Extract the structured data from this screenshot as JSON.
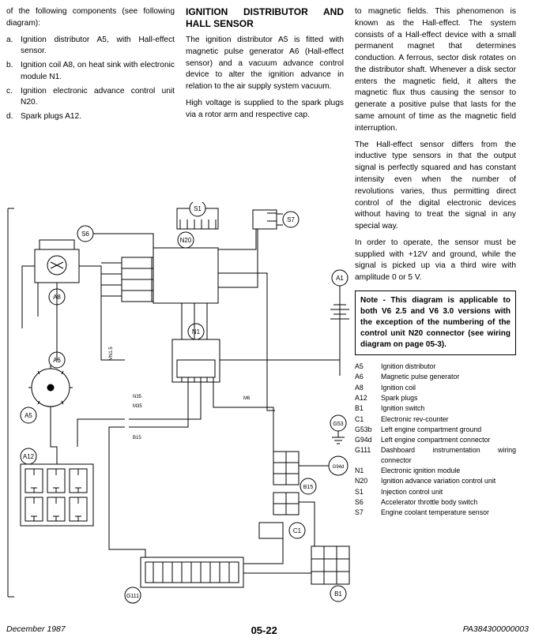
{
  "col_left": {
    "intro": "of the following components (see following diagram):",
    "items": [
      {
        "marker": "a.",
        "text": "Ignition distributor A5, with Hall-effect sensor."
      },
      {
        "marker": "b.",
        "text": "Ignition coil A8, on heat sink with electronic module N1."
      },
      {
        "marker": "c.",
        "text": "Ignition electronic advance control unit N20."
      },
      {
        "marker": "d.",
        "text": "Spark plugs A12."
      }
    ]
  },
  "col_mid": {
    "heading": "IGNITION DISTRIBUTOR AND HALL SENSOR",
    "para1": "The ignition distributor A5 is fitted with magnetic pulse generator A6 (Hall-effect sensor) and a vacuum advance control device to alter the ignition advance in relation to the air supply system vacuum.",
    "para2": "High voltage is supplied to the spark plugs via a rotor arm and respective cap."
  },
  "col_right": {
    "para1": "to magnetic fields. This phenomenon is known as the Hall-effect. The system consists of a Hall-effect device with a small permanent magnet that determines conduction. A ferrous, sector disk rotates on the distributor shaft. Whenever a disk sector enters the magnetic field, it alters the magnetic flux thus causing the sensor to generate a positive pulse that lasts for the same amount of time as the magnetic field interruption.",
    "para2": "The Hall-effect sensor differs from the inductive type sensors in that the output signal is perfectly squared and has constant intensity even when the number of revolutions varies, thus permitting direct control of the digital electronic devices without having to treat the signal in any special way.",
    "para3": "In order to operate, the sensor must be supplied with +12V and ground, while the signal is picked up via a third wire with amplitude 0 or 5 V.",
    "note": "Note - This diagram is applicable to both V6 2.5 and V6 3.0 versions with the exception of the numbering of the control unit N20 connector (see wiring diagram on page 05-3).",
    "legend": [
      {
        "k": "A5",
        "v": "Ignition distributor"
      },
      {
        "k": "A6",
        "v": "Magnetic pulse generator"
      },
      {
        "k": "A8",
        "v": "Ignition coil"
      },
      {
        "k": "A12",
        "v": "Spark plugs"
      },
      {
        "k": "B1",
        "v": "Ignition switch"
      },
      {
        "k": "C1",
        "v": "Electronic rev-counter"
      },
      {
        "k": "G53b",
        "v": "Left engine compartment ground"
      },
      {
        "k": "G94d",
        "v": "Left engine compartment connector"
      },
      {
        "k": "G111",
        "v": "Dashboard instrumentation wiring connector"
      },
      {
        "k": "N1",
        "v": "Electronic ignition module"
      },
      {
        "k": "N20",
        "v": "Ignition advance variation control unit"
      },
      {
        "k": "S1",
        "v": "Injection control unit"
      },
      {
        "k": "S6",
        "v": "Accelerator throttle body switch"
      },
      {
        "k": "S7",
        "v": "Engine coolant temperature sensor"
      }
    ]
  },
  "diagram": {
    "labels": [
      "S1",
      "S7",
      "S6",
      "N20",
      "N1",
      "A1",
      "A8",
      "A6",
      "A5",
      "A12",
      "G53b",
      "G94d",
      "B15",
      "N35",
      "M35",
      "C1",
      "B1",
      "G111",
      "VM15",
      "VM13",
      "VM16",
      "VN1.5",
      "M6",
      "B15"
    ],
    "stroke": "#000000",
    "fill": "#ffffff"
  },
  "footer": {
    "left": "December 1987",
    "center": "05-22",
    "right": "PA384300000003"
  }
}
